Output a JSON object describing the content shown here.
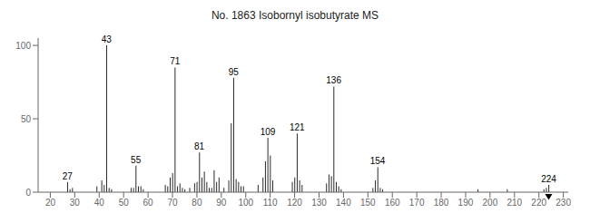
{
  "chart_data": {
    "type": "bar",
    "title": "No. 1863  Isobornyl isobutyrate MS",
    "x": [
      27,
      28,
      29,
      39,
      41,
      42,
      43,
      44,
      45,
      53,
      54,
      55,
      56,
      57,
      58,
      67,
      68,
      69,
      70,
      71,
      72,
      73,
      74,
      75,
      77,
      79,
      80,
      81,
      82,
      83,
      84,
      85,
      86,
      87,
      88,
      89,
      91,
      93,
      94,
      95,
      96,
      97,
      98,
      99,
      105,
      107,
      108,
      109,
      110,
      111,
      119,
      120,
      121,
      122,
      123,
      133,
      134,
      135,
      136,
      137,
      138,
      139,
      152,
      153,
      154,
      155,
      156,
      195,
      207,
      222,
      223,
      224
    ],
    "values": [
      7,
      2,
      3,
      4,
      8,
      5,
      100,
      3,
      2,
      3,
      3,
      18,
      4,
      4,
      2,
      5,
      4,
      10,
      13,
      85,
      4,
      6,
      3,
      2,
      3,
      6,
      7,
      27,
      10,
      14,
      7,
      3,
      3,
      15,
      7,
      10,
      3,
      8,
      47,
      78,
      9,
      7,
      4,
      4,
      5,
      10,
      21,
      37,
      25,
      8,
      7,
      10,
      40,
      8,
      5,
      6,
      12,
      11,
      72,
      7,
      4,
      2,
      3,
      8,
      17,
      3,
      2,
      2,
      2,
      2,
      3,
      5
    ],
    "color": "#2a2a2a",
    "xlim": [
      15,
      232
    ],
    "ylim": [
      0,
      105
    ],
    "xticks": [
      20,
      30,
      40,
      50,
      60,
      70,
      80,
      90,
      100,
      110,
      120,
      130,
      140,
      150,
      160,
      170,
      180,
      190,
      200,
      210,
      220,
      230
    ],
    "yticks": [
      0,
      50,
      100
    ],
    "annotations": [
      {
        "x": 27,
        "y": 7,
        "text": "27"
      },
      {
        "x": 43,
        "y": 100,
        "text": "43"
      },
      {
        "x": 55,
        "y": 18,
        "text": "55"
      },
      {
        "x": 71,
        "y": 85,
        "text": "71"
      },
      {
        "x": 81,
        "y": 27,
        "text": "81"
      },
      {
        "x": 95,
        "y": 78,
        "text": "95"
      },
      {
        "x": 109,
        "y": 37,
        "text": "109"
      },
      {
        "x": 121,
        "y": 40,
        "text": "121"
      },
      {
        "x": 136,
        "y": 72,
        "text": "136"
      },
      {
        "x": 154,
        "y": 17,
        "text": "154"
      },
      {
        "x": 224,
        "y": 5,
        "text": "224"
      }
    ],
    "molecular_ion": 224
  }
}
